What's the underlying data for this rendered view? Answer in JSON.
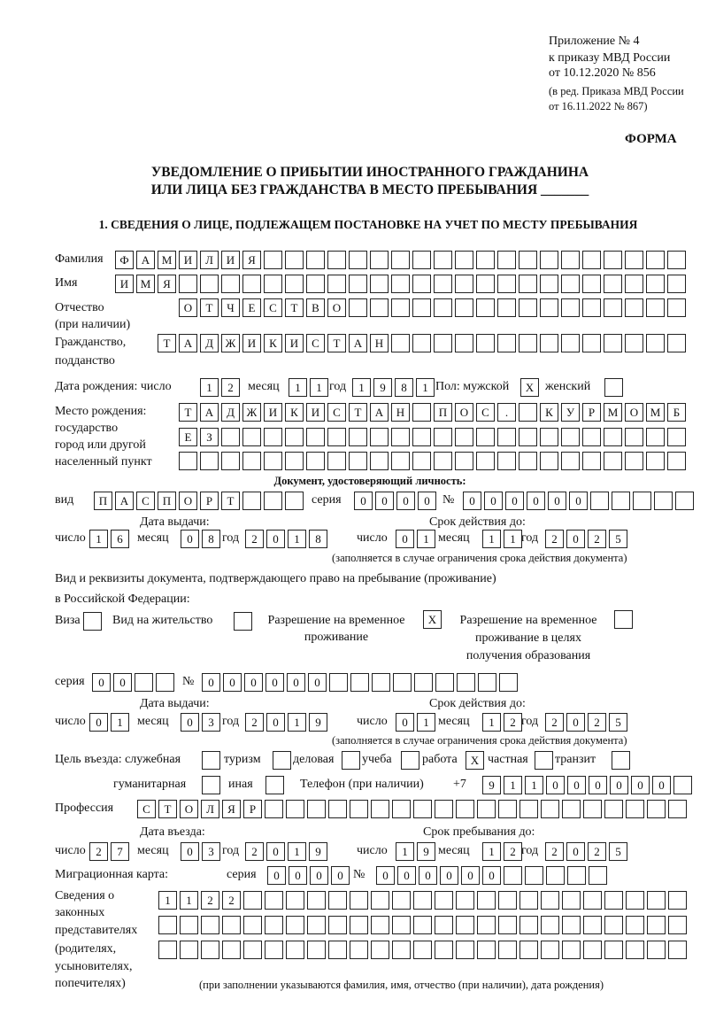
{
  "header": {
    "appendix": "Приложение № 4",
    "order": "к приказу МВД России",
    "order_date": "от 10.12.2020 № 856",
    "revision_1": "(в ред. Приказа МВД России",
    "revision_2": "от 16.11.2022 № 867)",
    "form_label": "ФОРМА",
    "title_1": "УВЕДОМЛЕНИЕ О ПРИБЫТИИ ИНОСТРАННОГО ГРАЖДАНИНА",
    "title_2": "ИЛИ ЛИЦА БЕЗ ГРАЖДАНСТВА В МЕСТО ПРЕБЫВАНИЯ _______"
  },
  "section1": {
    "heading": "1. СВЕДЕНИЯ О ЛИЦЕ, ПОДЛЕЖАЩЕМ ПОСТАНОВКЕ НА УЧЕТ ПО МЕСТУ ПРЕБЫВАНИЯ"
  },
  "check_mark": "X",
  "labels": {
    "surname": "Фамилия",
    "name": "Имя",
    "patronymic": "Отчество",
    "patronymic_note": "(при наличии)",
    "citizenship": "Гражданство,",
    "citizenship_2": "подданство",
    "birth_date": "Дата рождения:   число",
    "month": "месяц",
    "year": "год",
    "day": "число",
    "sex": "Пол: мужской",
    "female": "женский",
    "birth_place_1": "Место рождения:",
    "birth_place_2": "государство",
    "birth_place_3": "город или другой",
    "birth_place_4": "населенный пункт",
    "id_doc": "Документ, удостоверяющий личность:",
    "kind": "вид",
    "series": "серия",
    "number": "№",
    "issue_date": "Дата выдачи:",
    "valid_until": "Срок действия до:",
    "valid_note": "(заполняется в случае ограничения срока действия документа)",
    "stay_doc_1": "Вид и реквизиты документа, подтверждающего право на пребывание (проживание)",
    "stay_doc_2": "в Российской Федерации:",
    "visa": "Виза",
    "residence_permit": "Вид на жительство",
    "temp_residence_1": "Разрешение на временное",
    "temp_residence_2": "проживание",
    "temp_edu_1": "Разрешение на временное",
    "temp_edu_2": "проживание в целях",
    "temp_edu_3": "получения образования",
    "purpose": "Цель въезда: служебная",
    "tourism": "туризм",
    "business": "деловая",
    "study": "учеба",
    "work": "работа",
    "private": "частная",
    "transit": "транзит",
    "humanitarian": "гуманитарная",
    "other": "иная",
    "phone": "Телефон (при наличии)",
    "phone_prefix": "+7",
    "profession": "Профессия",
    "entry_date": "Дата въезда:",
    "stay_until": "Срок пребывания до:",
    "migration_card": "Миграционная карта:",
    "reps_1": "Сведения о",
    "reps_2": "законных",
    "reps_3": "представителях",
    "reps_4": "(родителях,",
    "reps_5": "усыновителях,",
    "reps_6": "попечителях)",
    "reps_note": "(при заполнении указываются фамилия, имя, отчество (при наличии), дата рождения)"
  },
  "person": {
    "surname": "ФАМИЛИЯ",
    "name": "ИМЯ",
    "patronymic": "ОТЧЕСТВО",
    "citizenship": "ТАДЖИКИСТАН",
    "birth_day": "12",
    "birth_month": "11",
    "birth_year": "1981",
    "sex_male": true,
    "sex_female": false,
    "birth_place_1": "ТАДЖИКИСТАН ПОС. КУРМОМБ",
    "birth_place_2": "ЕЗ",
    "birth_place_3": ""
  },
  "id_document": {
    "kind": "ПАСПОРТ",
    "series": "0000",
    "number": "000000",
    "issue_day": "16",
    "issue_month": "08",
    "issue_year": "2018",
    "valid_day": "01",
    "valid_month": "11",
    "valid_year": "2025"
  },
  "stay_document": {
    "visa": false,
    "residence_permit": false,
    "temp_residence": true,
    "temp_residence_edu": false,
    "series": "00",
    "number": "000000",
    "issue_day": "01",
    "issue_month": "03",
    "issue_year": "2019",
    "valid_day": "01",
    "valid_month": "12",
    "valid_year": "2025"
  },
  "purpose": {
    "official": false,
    "tourism": false,
    "business": false,
    "study": false,
    "work": true,
    "private": false,
    "transit": false,
    "humanitarian": false,
    "other": false
  },
  "phone": "911000000",
  "profession": "СТОЛЯР",
  "entry": {
    "entry_day": "27",
    "entry_month": "03",
    "entry_year": "2019",
    "until_day": "19",
    "until_month": "12",
    "until_year": "2025"
  },
  "migration_card": {
    "series": "0000",
    "number": "000000"
  },
  "representatives": {
    "line_1": "1122",
    "line_2": "",
    "line_3": ""
  }
}
